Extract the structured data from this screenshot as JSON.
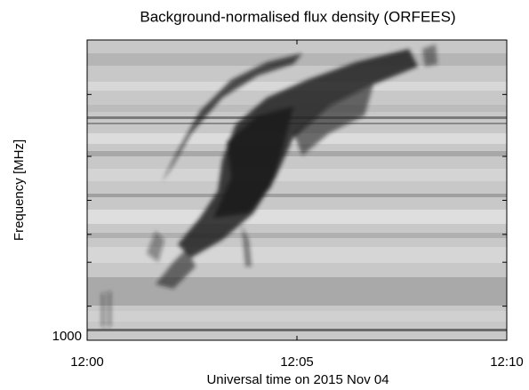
{
  "chart_data": {
    "type": "spectrogram",
    "title": "Background-normalised flux density (ORFEES)",
    "xlabel": "Universal time on 2015 Nov 04",
    "ylabel": "Frequency [MHz]",
    "xlim": [
      "12:00",
      "12:10"
    ],
    "xticks": [
      "12:00",
      "12:05",
      "12:10"
    ],
    "ylim": [
      1000,
      140
    ],
    "ylog": true,
    "yticks": [
      {
        "value": 1000,
        "label": "1000"
      },
      {
        "value": 800,
        "label": null
      },
      {
        "value": 600,
        "label": null
      },
      {
        "value": 500,
        "label": null
      },
      {
        "value": 400,
        "label": null
      },
      {
        "value": 300,
        "label": null
      },
      {
        "value": 200,
        "label": null
      }
    ]
  }
}
